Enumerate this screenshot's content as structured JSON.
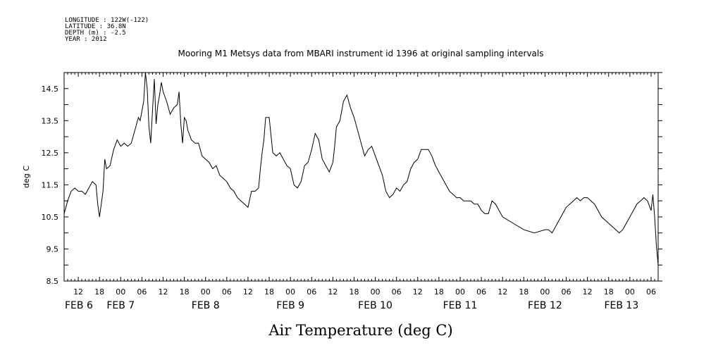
{
  "metadata": {
    "longitude": "LONGITUDE : 122W(-122)",
    "latitude": "LATITUDE : 36.8N",
    "depth": "DEPTH (m) : -2.5",
    "year": "YEAR : 2012"
  },
  "chart_data": {
    "type": "line",
    "title": "Mooring M1 Metsys data from MBARI instrument id 1396 at original sampling intervals",
    "xlabel": "Air Temperature (deg C)",
    "ylabel": "deg C",
    "ylim": [
      8.5,
      15.0
    ],
    "xlim_hours": [
      8,
      176
    ],
    "yticks": [
      "8.5",
      "9.5",
      "10.5",
      "11.5",
      "12.5",
      "13.5",
      "14.5"
    ],
    "xticks_hours": [
      "12",
      "18",
      "00",
      "06",
      "12",
      "18",
      "00",
      "06",
      "12",
      "18",
      "00",
      "06",
      "12",
      "18",
      "00",
      "06",
      "12",
      "18",
      "00",
      "06",
      "12",
      "18",
      "00",
      "06",
      "12",
      "18",
      "00",
      "06",
      "12",
      "18",
      "00",
      "06"
    ],
    "day_labels": [
      "FEB  6",
      "FEB  7",
      "FEB  8",
      "FEB  9",
      "FEB 10",
      "FEB 11",
      "FEB 12",
      "FEB 13"
    ],
    "series": [
      {
        "x": [
          "FEB 6 08:00",
          "FEB 6 09:00",
          "FEB 6 10:00",
          "FEB 6 11:00",
          "FEB 6 12:00",
          "FEB 6 13:00",
          "FEB 6 14:00",
          "FEB 6 15:00",
          "FEB 6 16:00",
          "FEB 6 17:00",
          "FEB 6 17:30",
          "FEB 6 18:00",
          "FEB 6 19:00",
          "FEB 6 19:30",
          "FEB 6 20:00",
          "FEB 6 21:00",
          "FEB 6 22:00",
          "FEB 6 23:00",
          "FEB 7 00:00",
          "FEB 7 01:00",
          "FEB 7 02:00",
          "FEB 7 03:00",
          "FEB 7 04:00",
          "FEB 7 05:00",
          "FEB 7 05:30",
          "FEB 7 06:00",
          "FEB 7 06:30",
          "FEB 7 07:00",
          "FEB 7 07:30",
          "FEB 7 08:00",
          "FEB 7 08:30",
          "FEB 7 09:00",
          "FEB 7 09:30",
          "FEB 7 10:00",
          "FEB 7 10:30",
          "FEB 7 11:00",
          "FEB 7 11:30",
          "FEB 7 12:00",
          "FEB 7 13:00",
          "FEB 7 14:00",
          "FEB 7 15:00",
          "FEB 7 16:00",
          "FEB 7 16:30",
          "FEB 7 17:00",
          "FEB 7 17:30",
          "FEB 7 18:00",
          "FEB 7 18:30",
          "FEB 7 19:00",
          "FEB 7 20:00",
          "FEB 7 21:00",
          "FEB 7 22:00",
          "FEB 7 23:00",
          "FEB 8 00:00",
          "FEB 8 01:00",
          "FEB 8 02:00",
          "FEB 8 03:00",
          "FEB 8 04:00",
          "FEB 8 05:00",
          "FEB 8 06:00",
          "FEB 8 07:00",
          "FEB 8 08:00",
          "FEB 8 09:00",
          "FEB 8 10:00",
          "FEB 8 11:00",
          "FEB 8 12:00",
          "FEB 8 13:00",
          "FEB 8 14:00",
          "FEB 8 15:00",
          "FEB 8 15:30",
          "FEB 8 16:00",
          "FEB 8 16:30",
          "FEB 8 17:00",
          "FEB 8 18:00",
          "FEB 8 19:00",
          "FEB 8 20:00",
          "FEB 8 21:00",
          "FEB 8 22:00",
          "FEB 8 23:00",
          "FEB 9 00:00",
          "FEB 9 01:00",
          "FEB 9 02:00",
          "FEB 9 03:00",
          "FEB 9 04:00",
          "FEB 9 05:00",
          "FEB 9 06:00",
          "FEB 9 07:00",
          "FEB 9 08:00",
          "FEB 9 09:00",
          "FEB 9 09:30",
          "FEB 9 10:00",
          "FEB 9 11:00",
          "FEB 9 12:00",
          "FEB 9 12:30",
          "FEB 9 13:00",
          "FEB 9 14:00",
          "FEB 9 15:00",
          "FEB 9 16:00",
          "FEB 9 17:00",
          "FEB 9 18:00",
          "FEB 9 19:00",
          "FEB 9 20:00",
          "FEB 9 21:00",
          "FEB 9 22:00",
          "FEB 9 23:00",
          "FEB 10 00:00",
          "FEB 10 01:00",
          "FEB 10 02:00",
          "FEB 10 03:00",
          "FEB 10 04:00",
          "FEB 10 05:00",
          "FEB 10 06:00",
          "FEB 10 07:00",
          "FEB 10 08:00",
          "FEB 10 09:00",
          "FEB 10 10:00",
          "FEB 10 11:00",
          "FEB 10 12:00",
          "FEB 10 13:00",
          "FEB 10 14:00",
          "FEB 10 15:00",
          "FEB 10 16:00",
          "FEB 10 17:00",
          "FEB 10 18:00",
          "FEB 10 19:00",
          "FEB 10 20:00",
          "FEB 10 21:00",
          "FEB 10 22:00",
          "FEB 10 23:00",
          "FEB 11 00:00",
          "FEB 11 01:00",
          "FEB 11 02:00",
          "FEB 11 03:00",
          "FEB 11 04:00",
          "FEB 11 05:00",
          "FEB 11 06:00",
          "FEB 11 07:00",
          "FEB 11 08:00",
          "FEB 11 09:00",
          "FEB 11 10:00",
          "FEB 11 11:00",
          "FEB 11 12:00",
          "FEB 11 15:00",
          "FEB 11 18:00",
          "FEB 11 21:00",
          "FEB 12 00:00",
          "FEB 12 01:00",
          "FEB 12 02:00",
          "FEB 12 03:00",
          "FEB 12 04:00",
          "FEB 12 05:00",
          "FEB 12 06:00",
          "FEB 12 07:00",
          "FEB 12 08:00",
          "FEB 12 09:00",
          "FEB 12 10:00",
          "FEB 12 11:00",
          "FEB 12 12:00",
          "FEB 12 13:00",
          "FEB 12 14:00",
          "FEB 12 15:00",
          "FEB 12 16:00",
          "FEB 12 17:00",
          "FEB 12 18:00",
          "FEB 12 19:00",
          "FEB 12 20:00",
          "FEB 12 21:00",
          "FEB 12 22:00",
          "FEB 12 23:00",
          "FEB 13 00:00",
          "FEB 13 01:00",
          "FEB 13 02:00",
          "FEB 13 03:00",
          "FEB 13 04:00",
          "FEB 13 05:00",
          "FEB 13 06:00",
          "FEB 13 06:30",
          "FEB 13 07:00",
          "FEB 13 07:30",
          "FEB 13 08:00"
        ],
        "values": [
          10.6,
          11.0,
          11.3,
          11.4,
          11.3,
          11.3,
          11.2,
          11.4,
          11.6,
          11.5,
          10.9,
          10.5,
          11.3,
          12.3,
          12.0,
          12.1,
          12.6,
          12.9,
          12.7,
          12.8,
          12.7,
          12.8,
          13.2,
          13.6,
          13.5,
          13.8,
          14.1,
          15.0,
          14.5,
          13.3,
          12.8,
          13.8,
          14.8,
          13.4,
          14.0,
          14.3,
          14.7,
          14.4,
          14.1,
          13.7,
          13.9,
          14.0,
          14.4,
          13.4,
          12.8,
          13.6,
          13.5,
          13.2,
          12.9,
          12.8,
          12.8,
          12.4,
          12.3,
          12.2,
          12.0,
          12.1,
          11.8,
          11.7,
          11.6,
          11.4,
          11.3,
          11.1,
          11.0,
          10.9,
          10.8,
          11.3,
          11.3,
          11.4,
          12.0,
          12.5,
          12.9,
          13.6,
          13.6,
          12.5,
          12.4,
          12.5,
          12.3,
          12.1,
          12.0,
          11.5,
          11.4,
          11.6,
          12.1,
          12.2,
          12.6,
          13.1,
          12.9,
          12.3,
          12.2,
          12.1,
          11.9,
          12.2,
          12.7,
          13.3,
          13.5,
          14.1,
          14.3,
          13.9,
          13.6,
          13.2,
          12.8,
          12.4,
          12.6,
          12.7,
          12.4,
          12.1,
          11.8,
          11.3,
          11.1,
          11.2,
          11.4,
          11.3,
          11.5,
          11.6,
          12.0,
          12.2,
          12.3,
          12.6,
          12.6,
          12.6,
          12.4,
          12.1,
          11.9,
          11.7,
          11.5,
          11.3,
          11.2,
          11.1,
          11.1,
          11.0,
          11.0,
          11.0,
          10.9,
          10.9,
          10.7,
          10.6,
          10.6,
          11.0,
          10.9,
          10.7,
          10.5,
          10.3,
          10.1,
          10.0,
          10.1,
          10.1,
          10.0,
          10.2,
          10.4,
          10.6,
          10.8,
          10.9,
          11.0,
          11.1,
          11.0,
          11.1,
          11.1,
          11.0,
          10.9,
          10.7,
          10.5,
          10.4,
          10.3,
          10.2,
          10.1,
          10.0,
          10.1,
          10.3,
          10.5,
          10.7,
          10.9,
          11.0,
          11.1,
          11.0,
          10.7,
          11.2,
          10.5,
          9.6,
          9.0
        ]
      }
    ]
  }
}
